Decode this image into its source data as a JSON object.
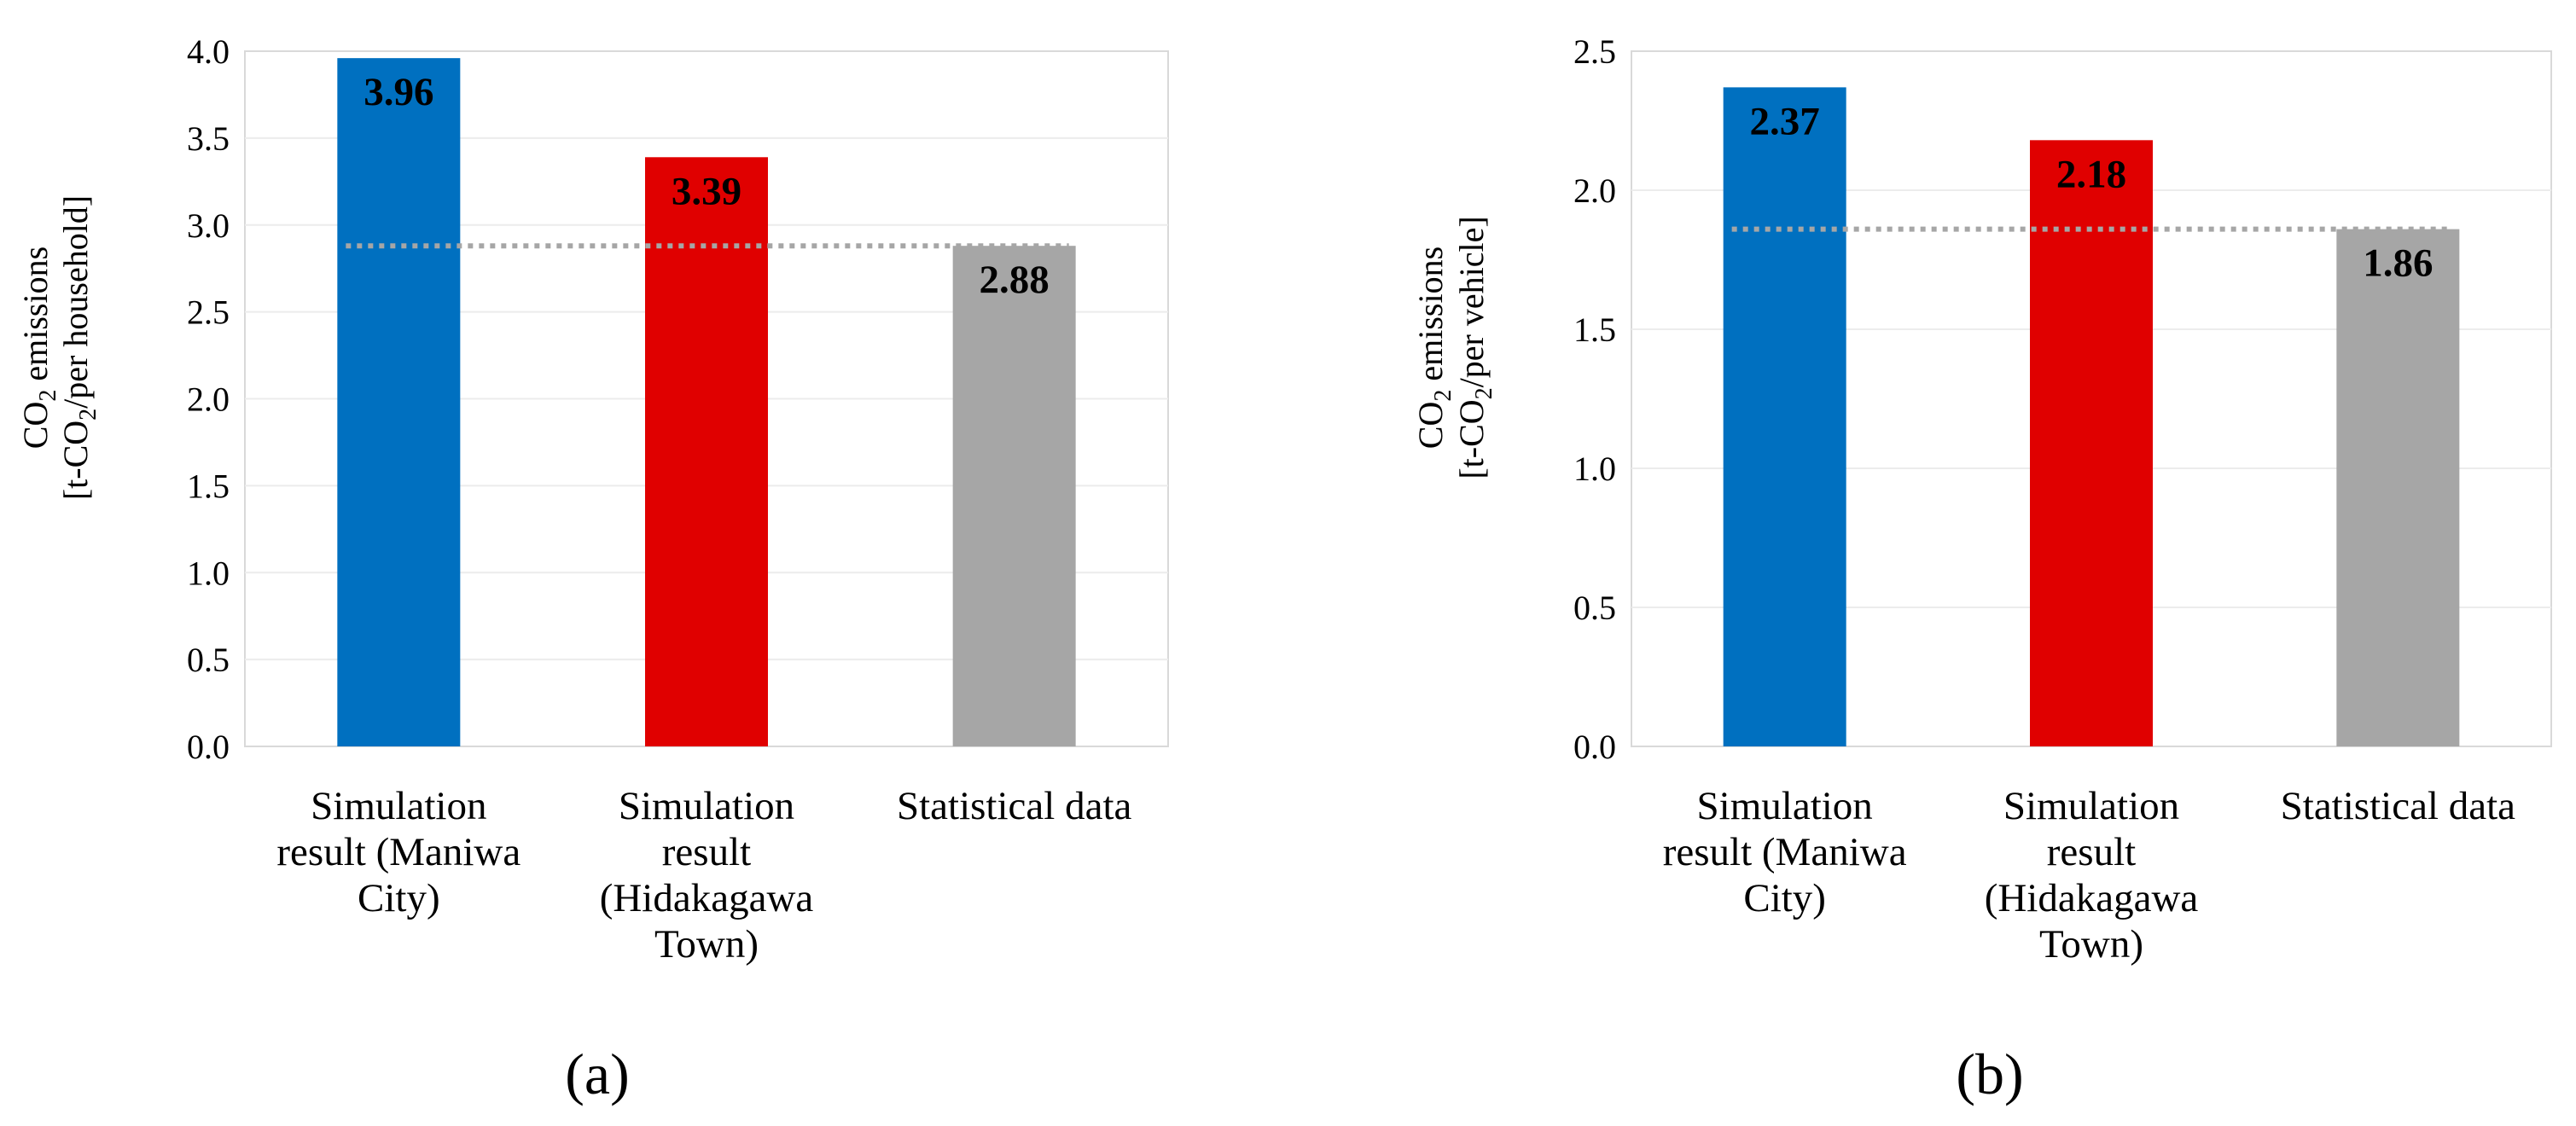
{
  "chart_data": [
    {
      "type": "bar",
      "panel_label": "(a)",
      "categories": [
        [
          "Simulation",
          "result (Maniwa",
          "City)"
        ],
        [
          "Simulation",
          "result",
          "(Hidakagawa",
          "Town)"
        ],
        [
          "Statistical data"
        ]
      ],
      "values": [
        3.96,
        3.39,
        2.88
      ],
      "value_labels": [
        "3.96",
        "3.39",
        "2.88"
      ],
      "colors": [
        "#0070c0",
        "#e00000",
        "#a6a6a6"
      ],
      "ylabel_line1": {
        "prefix": "CO",
        "sub": "2",
        "suffix": " emissions"
      },
      "ylabel_line2": {
        "prefix": "[t-CO",
        "sub": "2",
        "suffix": "/per household]"
      },
      "ylim": [
        0,
        4.0
      ],
      "yticks": [
        "0.0",
        "0.5",
        "1.0",
        "1.5",
        "2.0",
        "2.5",
        "3.0",
        "3.5",
        "4.0"
      ],
      "reference_line": 2.88,
      "grid": true
    },
    {
      "type": "bar",
      "panel_label": "(b)",
      "categories": [
        [
          "Simulation",
          "result (Maniwa",
          "City)"
        ],
        [
          "Simulation",
          "result",
          "(Hidakagawa",
          "Town)"
        ],
        [
          "Statistical data"
        ]
      ],
      "values": [
        2.37,
        2.18,
        1.86
      ],
      "value_labels": [
        "2.37",
        "2.18",
        "1.86"
      ],
      "colors": [
        "#0070c0",
        "#e00000",
        "#a6a6a6"
      ],
      "ylabel_line1": {
        "prefix": "CO",
        "sub": "2",
        "suffix": " emissions"
      },
      "ylabel_line2": {
        "prefix": "[t-CO",
        "sub": "2",
        "suffix": "/per vehicle]"
      },
      "ylim": [
        0,
        2.5
      ],
      "yticks": [
        "0.0",
        "0.5",
        "1.0",
        "1.5",
        "2.0",
        "2.5"
      ],
      "reference_line": 1.86,
      "grid": true
    }
  ]
}
